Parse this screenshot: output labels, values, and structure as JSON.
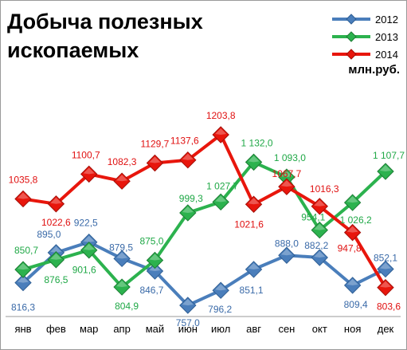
{
  "chart_data": {
    "type": "line",
    "title": "Добыча полезных ископаемых",
    "unit": "млн.руб.",
    "categories": [
      "янв",
      "фев",
      "мар",
      "апр",
      "май",
      "июн",
      "июл",
      "авг",
      "сен",
      "окт",
      "ноя",
      "дек"
    ],
    "series": [
      {
        "name": "2012",
        "color": "#4a7ebb",
        "values": [
          816.3,
          895.0,
          922.5,
          879.5,
          846.7,
          757.0,
          796.2,
          851.1,
          888.0,
          882.2,
          809.4,
          852.1
        ],
        "labels": [
          "816,3",
          "895,0",
          "922,5",
          "879,5",
          "846,7",
          "757,0",
          "796,2",
          "851,1",
          "888,0",
          "882,2",
          "809,4",
          "852,1"
        ]
      },
      {
        "name": "2013",
        "color": "#2cb24e",
        "values": [
          850.7,
          876.5,
          901.6,
          804.9,
          875.0,
          999.3,
          1027.7,
          1132.0,
          1093.0,
          954.1,
          1026.2,
          1107.7
        ],
        "labels": [
          "850,7",
          "876,5",
          "901,6",
          "804,9",
          "875,0",
          "999,3",
          "1 027,7",
          "1 132,0",
          "1 093,0",
          "954,1",
          "1 026,2",
          "1 107,7"
        ]
      },
      {
        "name": "2014",
        "color": "#e8160c",
        "values": [
          1035.8,
          1022.6,
          1100.7,
          1082.3,
          1129.7,
          1137.6,
          1203.8,
          1021.6,
          1067.7,
          1016.3,
          947.8,
          803.6
        ],
        "labels": [
          "1035,8",
          "1022,6",
          "1100,7",
          "1082,3",
          "1129,7",
          "1137,6",
          "1203,8",
          "1021,6",
          "1067,7",
          "1016,3",
          "947,8",
          "803,6"
        ]
      }
    ],
    "legend_position": "top-right",
    "grid": false
  }
}
